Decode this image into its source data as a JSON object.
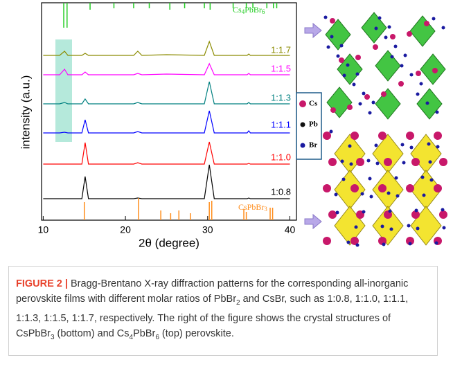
{
  "figure": {
    "chart_data": {
      "type": "line",
      "xlabel": "2θ (degree)",
      "ylabel": "intensity (a.u.)",
      "xlim": [
        9.8,
        40.8
      ],
      "xticks": [
        10,
        20,
        30,
        40
      ],
      "ylim": [
        0,
        314
      ],
      "x": [
        10,
        12,
        12.6,
        13,
        14.7,
        15.1,
        15.5,
        18,
        21,
        21.5,
        22,
        25,
        29.6,
        30.2,
        30.8,
        34.8,
        35,
        35.2,
        40
      ],
      "series": [
        {
          "name": "1:1.7",
          "color": "#8b8b00",
          "values": [
            238,
            238,
            244,
            238,
            238,
            241,
            238,
            238,
            238,
            244,
            238,
            239,
            238,
            258,
            238,
            238,
            240,
            238,
            238
          ]
        },
        {
          "name": "1:1.5",
          "color": "#ff00ff",
          "values": [
            210,
            210,
            218,
            210,
            210,
            214,
            210,
            210,
            210,
            212,
            210,
            211,
            210,
            226,
            210,
            210,
            212,
            210,
            210
          ]
        },
        {
          "name": "1:1.3",
          "color": "#008080",
          "values": [
            168,
            168,
            170,
            168,
            168,
            175,
            168,
            168,
            168,
            170,
            168,
            168,
            168,
            200,
            168,
            168,
            170,
            168,
            168
          ]
        },
        {
          "name": "1:1.1",
          "color": "#0000ff",
          "values": [
            126,
            126,
            127,
            126,
            126,
            145,
            126,
            126,
            126,
            128,
            126,
            126,
            126,
            158,
            126,
            126,
            129,
            126,
            126
          ]
        },
        {
          "name": "1:1.0",
          "color": "#ff0000",
          "values": [
            81,
            81,
            81,
            81,
            81,
            112,
            81,
            81,
            81,
            83,
            81,
            81,
            81,
            113,
            81,
            81,
            82,
            81,
            81
          ]
        },
        {
          "name": "1:0.8",
          "color": "#000000",
          "values": [
            31,
            31,
            31,
            31,
            31,
            63,
            31,
            31,
            31,
            32,
            31,
            31,
            31,
            80,
            31,
            31,
            32,
            31,
            31
          ]
        }
      ],
      "references": [
        {
          "name": "Cs4PbBr6",
          "color": "#22cc22",
          "positions": [
            12.5,
            12.9,
            15.7,
            18.6,
            21.0,
            22.9,
            25.4,
            27.2,
            29.6,
            30.3,
            33.1,
            34.7,
            35.5,
            37.2,
            38.0,
            38.4
          ],
          "heights": [
            36,
            36,
            10,
            8,
            8,
            8,
            10,
            8,
            8,
            10,
            8,
            8,
            8,
            8,
            8,
            8
          ]
        },
        {
          "name": "CsPbBr3",
          "color": "#ff8c1a",
          "positions": [
            15.0,
            21.6,
            24.3,
            25.5,
            26.5,
            27.9,
            30.2,
            30.5,
            34.4,
            34.7,
            37.6,
            37.9
          ],
          "heights": [
            26,
            32,
            14,
            10,
            14,
            10,
            26,
            28,
            16,
            12,
            18,
            18
          ]
        }
      ]
    },
    "legend": [
      "Cs",
      "Pb",
      "Br"
    ]
  },
  "caption": {
    "label": "FIGURE 2 |",
    "parts": [
      "Bragg-Brentano X-ray diffraction patterns for the corresponding all-inorganic perovskite films with different molar ratios of PbBr",
      "2",
      " and CsBr, such as 1:0.8, 1:1.0, 1:1.1, 1:1.3, 1:1.5, 1:1.7, respectively. The right of the figure shows the crystal structures of CsPbBr",
      "3",
      " (bottom) and Cs",
      "4",
      "PbBr",
      "6",
      " (top) perovskite."
    ]
  }
}
